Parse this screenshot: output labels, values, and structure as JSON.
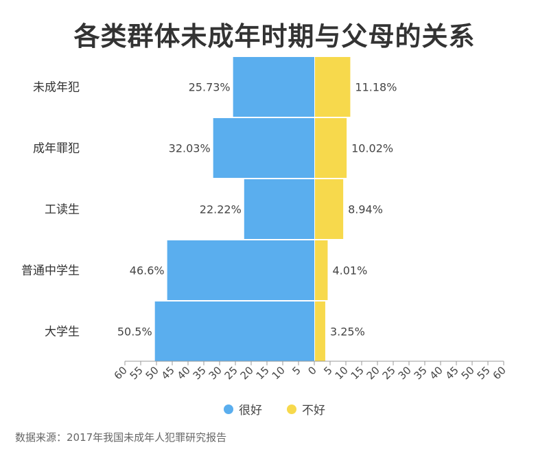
{
  "title": "各类群体未成年时期与父母的关系",
  "source": "数据来源：2017年我国未成年人犯罪研究报告",
  "colors": {
    "good": "#5aaeee",
    "bad": "#f7d94c"
  },
  "chart_data": {
    "type": "bar",
    "orientation": "horizontal-diverging",
    "title": "各类群体未成年时期与父母的关系",
    "categories": [
      "未成年犯",
      "成年罪犯",
      "工读生",
      "普通中学生",
      "大学生"
    ],
    "series": [
      {
        "name": "很好",
        "direction": "left",
        "values": [
          25.73,
          32.03,
          22.22,
          46.6,
          50.5
        ],
        "labels": [
          "25.73%",
          "32.03%",
          "22.22%",
          "46.6%",
          "50.5%"
        ]
      },
      {
        "name": "不好",
        "direction": "right",
        "values": [
          11.18,
          10.02,
          8.94,
          4.01,
          3.25
        ],
        "labels": [
          "11.18%",
          "10.02%",
          "8.94%",
          "4.01%",
          "3.25%"
        ]
      }
    ],
    "xlim": [
      -60,
      60
    ],
    "xticks": [
      "60",
      "55",
      "50",
      "45",
      "40",
      "35",
      "30",
      "25",
      "20",
      "15",
      "10",
      "5",
      "0",
      "5",
      "10",
      "15",
      "20",
      "25",
      "30",
      "35",
      "40",
      "45",
      "50",
      "55",
      "60"
    ],
    "legend": "bottom",
    "grid": false
  }
}
